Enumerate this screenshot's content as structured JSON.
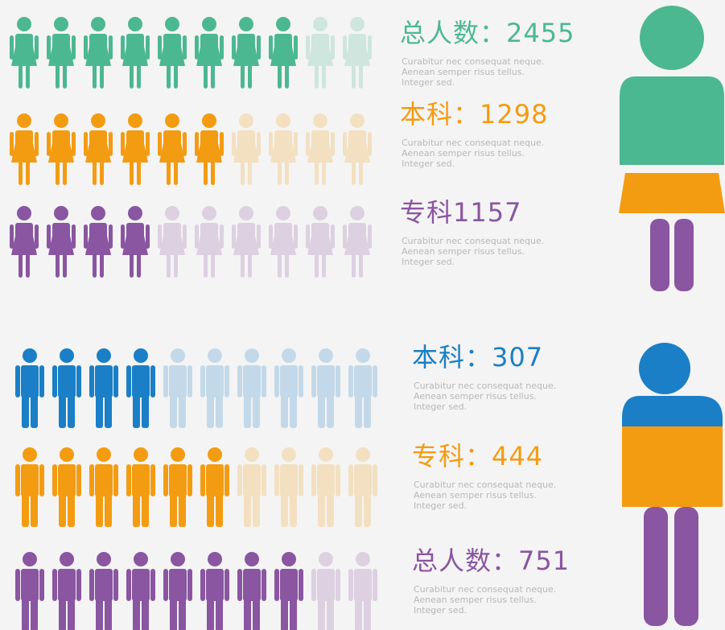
{
  "female": {
    "rows": [
      {
        "label": "总人数：2455",
        "description": "Curabitur nec consequat neque. Aenean semper risus tellus. Integer sed.",
        "color": "#4cb891",
        "filled": 8,
        "icons": 10
      },
      {
        "label": "本科：1298",
        "description": "Curabitur nec consequat neque. Aenean semper risus tellus. Integer sed.",
        "color": "#f39c12",
        "filled": 6,
        "icons": 10
      },
      {
        "label": "专科1157",
        "description": "Curabitur nec consequat neque. Aenean semper risus tellus. Integer sed.",
        "color": "#8a55a1",
        "filled": 4,
        "icons": 10
      }
    ]
  },
  "male": {
    "rows": [
      {
        "label": "本科：307",
        "description": "Curabitur nec consequat neque. Aenean semper risus tellus. Integer sed.",
        "color": "#1a7fc6",
        "filled": 4,
        "icons": 10
      },
      {
        "label": "专科：444",
        "description": "Curabitur nec consequat neque. Aenean semper risus tellus. Integer sed.",
        "color": "#f39c12",
        "filled": 6,
        "icons": 10
      },
      {
        "label": "总人数：751",
        "description": "Curabitur nec consequat neque. Aenean semper risus tellus. Integer sed.",
        "color": "#8a55a1",
        "filled": 8,
        "icons": 10
      }
    ]
  }
}
